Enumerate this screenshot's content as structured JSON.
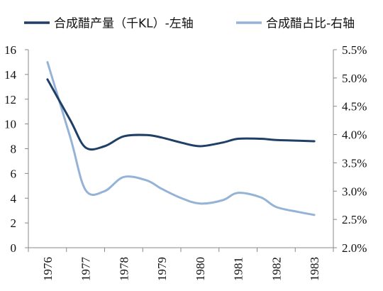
{
  "chart_data": {
    "type": "line",
    "categories": [
      "1976",
      "1977",
      "1978",
      "1979",
      "1980",
      "1981",
      "1982",
      "1983"
    ],
    "x": [
      1976.0,
      1976.6,
      1977.0,
      1977.5,
      1978.0,
      1978.6,
      1979.0,
      1979.5,
      1980.0,
      1980.6,
      1981.0,
      1981.6,
      1982.0,
      1982.6,
      1983.0
    ],
    "series": [
      {
        "name": "合成醋产量（千KL）-左轴",
        "axis": "left",
        "color": "#1f3f66",
        "values": [
          13.6,
          10.3,
          8.1,
          8.2,
          9.0,
          9.1,
          8.9,
          8.5,
          8.2,
          8.5,
          8.8,
          8.8,
          8.7,
          8.65,
          8.6
        ]
      },
      {
        "name": "合成醋占比-右轴",
        "axis": "right",
        "color": "#95b3d7",
        "values": [
          0.0528,
          0.0395,
          0.0302,
          0.03,
          0.0325,
          0.0319,
          0.0304,
          0.0288,
          0.0278,
          0.0284,
          0.0297,
          0.0289,
          0.0272,
          0.0263,
          0.0258
        ]
      }
    ],
    "ylim_left": [
      0,
      16
    ],
    "yticks_left": [
      0,
      2,
      4,
      6,
      8,
      10,
      12,
      14,
      16
    ],
    "ylim_right": [
      0.02,
      0.055
    ],
    "yticks_right": [
      "2.0%",
      "2.5%",
      "3.0%",
      "3.5%",
      "4.0%",
      "4.5%",
      "5.0%",
      "5.5%"
    ],
    "legend_position": "top",
    "grid": false
  }
}
